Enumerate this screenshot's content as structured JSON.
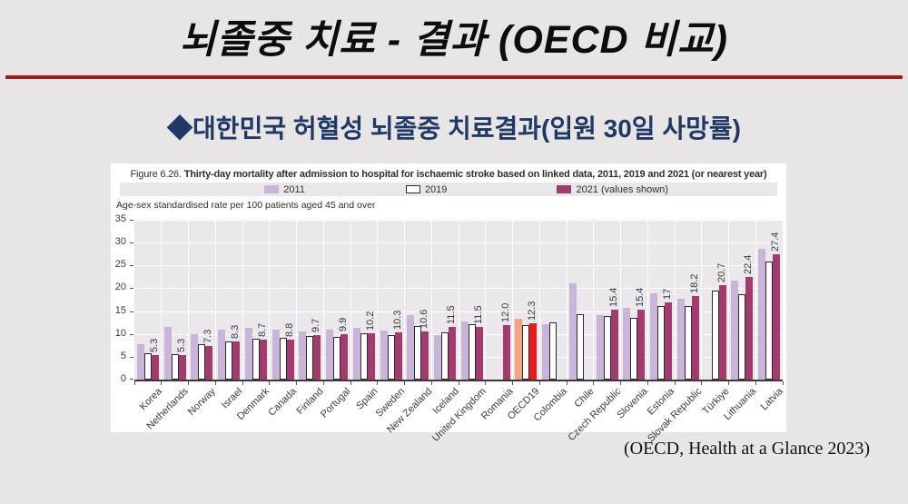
{
  "slide": {
    "title": "뇌졸중 치료 - 결과 (OECD 비교)",
    "subtitle": "◆대한민국 허혈성 뇌졸중 치료결과(입원 30일 사망률)",
    "citation": "(OECD, Health at a Glance 2023)",
    "colors": {
      "background": "#e8e5e6",
      "accent_line": "#9c1a1a",
      "subtitle": "#1f3864"
    }
  },
  "figure": {
    "label": "Figure 6.26.",
    "title_bold": "Thirty-day mortality after admission to hospital for ischaemic stroke based on linked data, 2011, 2019 and 2021 (or nearest year)",
    "axis_note": "Age-sex standardised rate per 100 patients aged 45 and over",
    "legend": [
      {
        "label": "2011",
        "color": "#c9b4da"
      },
      {
        "label": "2019",
        "color": "#ffffff",
        "border": "#2b2b2b"
      },
      {
        "label": "2021 (values shown)",
        "color": "#a23c6f"
      }
    ]
  },
  "chart_data": {
    "type": "bar",
    "title": "Thirty-day mortality after admission to hospital for ischaemic stroke based on linked data, 2011, 2019 and 2021 (or nearest year)",
    "ylabel": "Age-sex standardised rate per 100 patients aged 45 and over",
    "xlabel": "",
    "ylim": [
      0,
      35
    ],
    "yticks": [
      0,
      5,
      10,
      15,
      20,
      25,
      30,
      35
    ],
    "grid": true,
    "legend_position": "top",
    "highlight_index": 14,
    "highlight_category": "OECD19",
    "categories": [
      "Korea",
      "Netherlands",
      "Norway",
      "Israel",
      "Denmark",
      "Canada",
      "Finland",
      "Portugal",
      "Spain",
      "Sweden",
      "New Zealand",
      "Iceland",
      "United Kingdom",
      "Romania",
      "OECD19",
      "Colombia",
      "Chile",
      "Czech Republic",
      "Slovenia",
      "Estonia",
      "Slovak Republic",
      "Türkiye",
      "Lithuania",
      "Latvia"
    ],
    "series": [
      {
        "name": "2011",
        "style": "fill",
        "color": "#c9b4da",
        "highlight_color": "#f5a47f",
        "values": [
          7.8,
          11.5,
          10.0,
          11.0,
          11.4,
          11.0,
          10.6,
          11.0,
          11.3,
          10.8,
          14.1,
          9.7,
          12.8,
          null,
          13.4,
          12.2,
          21.0,
          14.1,
          15.7,
          18.9,
          17.7,
          null,
          21.7,
          28.7
        ]
      },
      {
        "name": "2019",
        "style": "outline",
        "color": "#ffffff",
        "border_color": "#2b2b2b",
        "values": [
          5.7,
          5.5,
          7.8,
          8.4,
          9.0,
          9.2,
          9.6,
          9.4,
          10.1,
          9.8,
          11.7,
          10.3,
          12.2,
          null,
          11.9,
          12.6,
          14.3,
          13.9,
          13.5,
          16.1,
          16.2,
          19.5,
          18.6,
          25.9
        ]
      },
      {
        "name": "2021 (values shown)",
        "style": "fill",
        "color": "#a23c6f",
        "highlight_color": "#e9191d",
        "values": [
          5.3,
          5.3,
          7.3,
          8.3,
          8.7,
          8.8,
          9.7,
          9.9,
          10.2,
          10.3,
          10.6,
          11.5,
          11.5,
          12.0,
          12.3,
          null,
          null,
          15.4,
          15.4,
          17,
          18.2,
          20.7,
          22.4,
          27.4
        ]
      }
    ],
    "value_labels": [
      "5.3",
      "5.3",
      "7.3",
      "8.3",
      "8.7",
      "8.8",
      "9.7",
      "9.9",
      "10.2",
      "10.3",
      "10.6",
      "11.5",
      "11.5",
      "12.0",
      "12.3",
      null,
      null,
      "15.4",
      "15.4",
      "17",
      "18.2",
      "20.7",
      "22.4",
      "27.4"
    ]
  }
}
